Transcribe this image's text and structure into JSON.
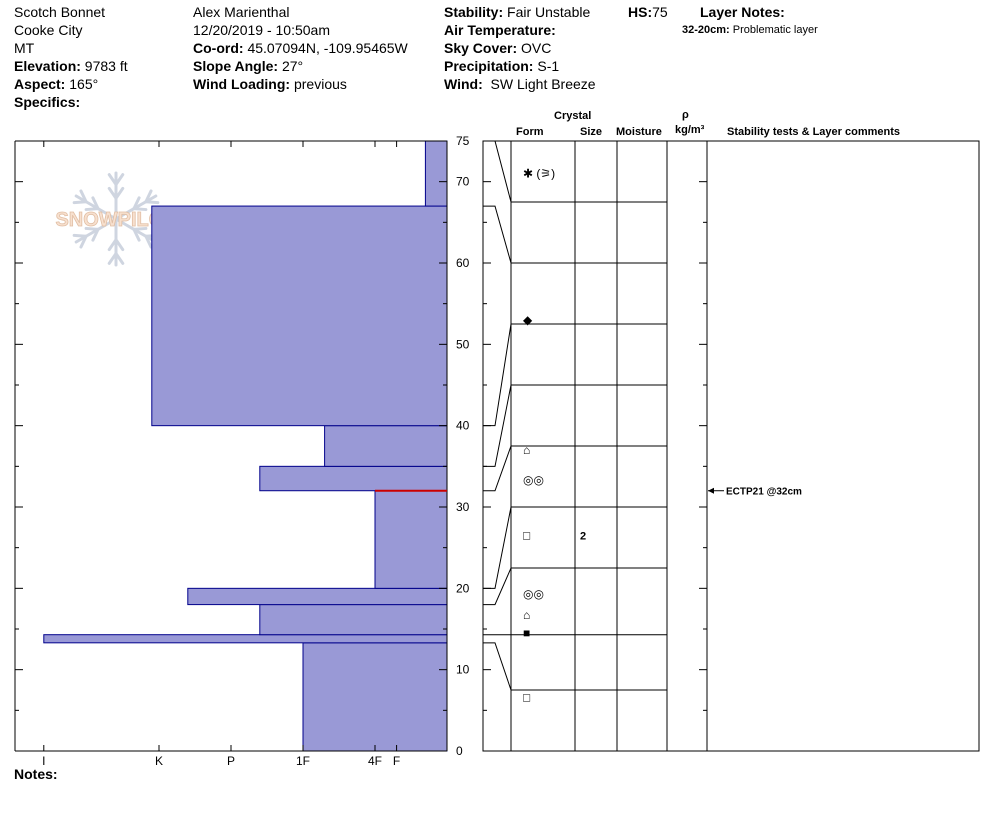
{
  "header": {
    "location": "Scotch Bonnet",
    "range": "Cooke City",
    "state": "MT",
    "elevation_label": "Elevation:",
    "elevation": "9783 ft",
    "aspect_label": "Aspect:",
    "aspect": "165°",
    "specifics_label": "Specifics:",
    "observer": "Alex Marienthal",
    "datetime": "12/20/2019 - 10:50am",
    "coord_label": "Co-ord:",
    "coord": "45.07094N, -109.95465W",
    "slope_label": "Slope Angle:",
    "slope": "27°",
    "wind_loading_label": "Wind Loading:",
    "wind_loading": "previous",
    "stability_label": "Stability:",
    "stability": "Fair Unstable",
    "hs_label": "HS:",
    "hs": "75",
    "air_temp_label": "Air Temperature:",
    "sky_label": "Sky Cover:",
    "sky": "OVC",
    "precip_label": "Precipitation:",
    "precip": "S-1",
    "wind_label": "Wind:",
    "wind": "SW Light Breeze",
    "layer_notes_label": "Layer Notes:",
    "layer_note_depth": "32-20cm:",
    "layer_note_text": "Problematic layer"
  },
  "logo_text": "SNOWPILOT",
  "columns": {
    "crystal": "Crystal",
    "form": "Form",
    "size": "Size",
    "moisture": "Moisture",
    "rho": "ρ",
    "density_unit": "kg/m³",
    "stability": "Stability tests & Layer comments"
  },
  "notes_label": "Notes:",
  "chart_data": {
    "type": "bar",
    "orientation": "horizontal",
    "ylim": [
      0,
      75
    ],
    "yticks": [
      "0",
      "10",
      "20",
      "30",
      "40",
      "50",
      "60",
      "70",
      "75"
    ],
    "xlabels": [
      "I",
      "K",
      "P",
      "1F",
      "4F",
      "F"
    ],
    "hardness_scale": [
      "F",
      "4F",
      "1F",
      "P",
      "K",
      "I"
    ],
    "layers": [
      {
        "bottom": 0,
        "top": 13.3,
        "hardness": 2.0
      },
      {
        "bottom": 13.3,
        "top": 14.3,
        "hardness": 5.6
      },
      {
        "bottom": 14.3,
        "top": 18.0,
        "hardness": 2.6
      },
      {
        "bottom": 18.0,
        "top": 20.0,
        "hardness": 3.6
      },
      {
        "bottom": 20.0,
        "top": 32.0,
        "hardness": 1.0
      },
      {
        "bottom": 32.0,
        "top": 35.0,
        "hardness": 2.6
      },
      {
        "bottom": 35.0,
        "top": 40.0,
        "hardness": 1.7
      },
      {
        "bottom": 40.0,
        "top": 67.0,
        "hardness": 4.1
      },
      {
        "bottom": 67.0,
        "top": 75.0,
        "hardness": 0.3
      }
    ],
    "problem_depth": 32,
    "grains": [
      {
        "depth": 71.0,
        "symbol": "✱ (⚞)",
        "size": ""
      },
      {
        "depth": 53.0,
        "symbol": "◆",
        "size": ""
      },
      {
        "depth": 37.0,
        "symbol": "⌂",
        "size": ""
      },
      {
        "depth": 33.3,
        "symbol": "◎◎",
        "size": ""
      },
      {
        "depth": 26.5,
        "symbol": "□",
        "size": "2"
      },
      {
        "depth": 19.3,
        "symbol": "◎◎",
        "size": ""
      },
      {
        "depth": 16.7,
        "symbol": "⌂",
        "size": ""
      },
      {
        "depth": 14.5,
        "symbol": "■",
        "size": ""
      },
      {
        "depth": 6.6,
        "symbol": "□",
        "size": ""
      }
    ],
    "stability_tests": [
      {
        "depth": 32,
        "text": "ECTP21 @32cm"
      }
    ]
  }
}
